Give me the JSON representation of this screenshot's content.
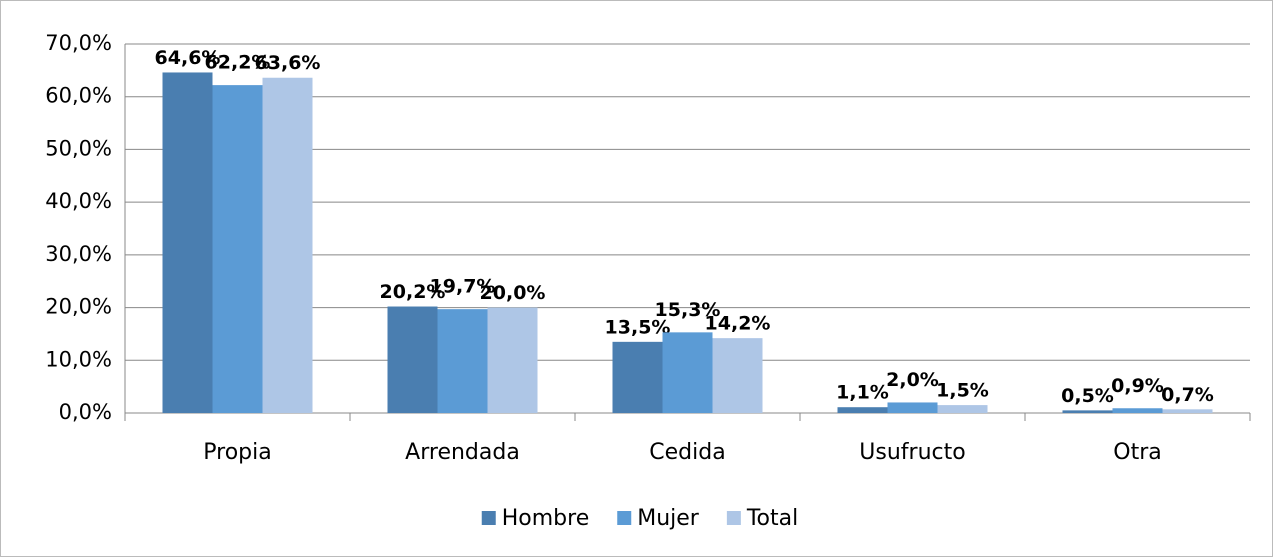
{
  "chart_data": {
    "type": "bar",
    "categories": [
      "Propia",
      "Arrendada",
      "Cedida",
      "Usufructo",
      "Otra"
    ],
    "series": [
      {
        "name": "Hombre",
        "color": "#4a7eb0",
        "values": [
          64.6,
          20.2,
          13.5,
          1.1,
          0.5
        ],
        "value_labels": [
          "64,6%",
          "20,2%",
          "13,5%",
          "1,1%",
          "0,5%"
        ]
      },
      {
        "name": "Mujer",
        "color": "#5b9bd5",
        "values": [
          62.2,
          19.7,
          15.3,
          2.0,
          0.9
        ],
        "value_labels": [
          "62,2%",
          "19,7%",
          "15,3%",
          "2,0%",
          "0,9%"
        ]
      },
      {
        "name": "Total",
        "color": "#aec6e6",
        "values": [
          63.6,
          20.0,
          14.2,
          1.5,
          0.7
        ],
        "value_labels": [
          "63,6%",
          "20,0%",
          "14,2%",
          "1,5%",
          "0,7%"
        ]
      }
    ],
    "ylim": [
      0,
      70
    ],
    "yticks": [
      {
        "value": 0,
        "label": "0,0%"
      },
      {
        "value": 10,
        "label": "10,0%"
      },
      {
        "value": 20,
        "label": "20,0%"
      },
      {
        "value": 30,
        "label": "30,0%"
      },
      {
        "value": 40,
        "label": "40,0%"
      },
      {
        "value": 50,
        "label": "50,0%"
      },
      {
        "value": 60,
        "label": "60,0%"
      },
      {
        "value": 70,
        "label": "70,0%"
      }
    ],
    "grid": true,
    "legend": "bottom"
  }
}
